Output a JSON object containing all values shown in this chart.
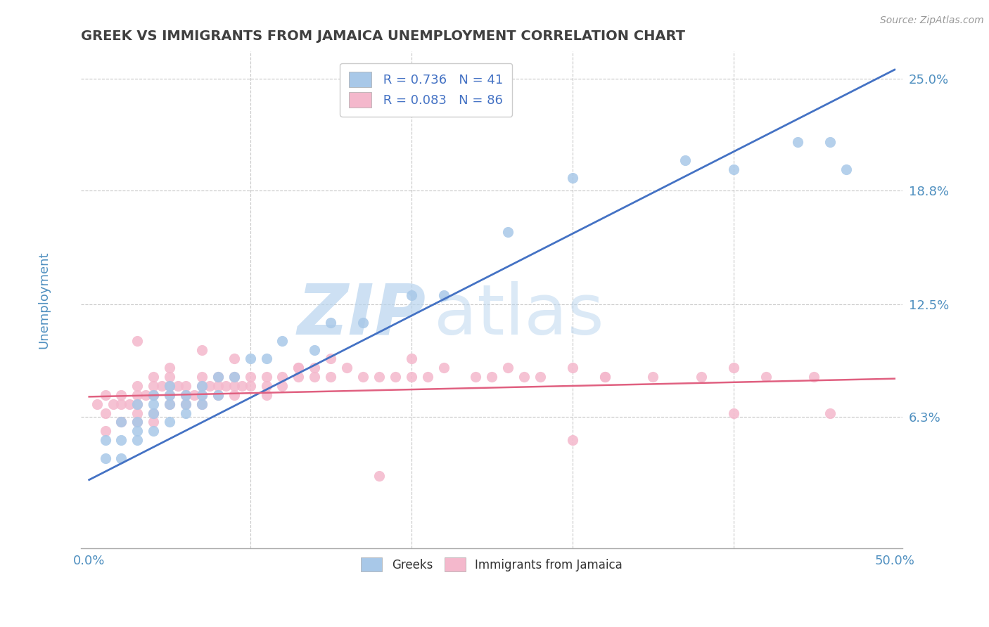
{
  "title": "GREEK VS IMMIGRANTS FROM JAMAICA UNEMPLOYMENT CORRELATION CHART",
  "source_text": "Source: ZipAtlas.com",
  "ylabel": "Unemployment",
  "xlim": [
    -0.005,
    0.505
  ],
  "ylim": [
    -0.01,
    0.265
  ],
  "ytick_positions": [
    0.063,
    0.125,
    0.188,
    0.25
  ],
  "ytick_labels": [
    "6.3%",
    "12.5%",
    "18.8%",
    "25.0%"
  ],
  "blue_color": "#a8c8e8",
  "pink_color": "#f4b8cc",
  "blue_line_color": "#4472c4",
  "pink_line_color": "#e06080",
  "watermark_zip": "ZIP",
  "watermark_atlas": "atlas",
  "watermark_color": "#b8d4ee",
  "legend_r1": "R = 0.736",
  "legend_n1": "N = 41",
  "legend_r2": "R = 0.083",
  "legend_n2": "N = 86",
  "legend_label1": "Greeks",
  "legend_label2": "Immigrants from Jamaica",
  "blue_scatter_x": [
    0.01,
    0.01,
    0.02,
    0.02,
    0.02,
    0.03,
    0.03,
    0.03,
    0.03,
    0.04,
    0.04,
    0.04,
    0.04,
    0.05,
    0.05,
    0.05,
    0.05,
    0.06,
    0.06,
    0.06,
    0.07,
    0.07,
    0.07,
    0.08,
    0.08,
    0.09,
    0.1,
    0.11,
    0.12,
    0.14,
    0.15,
    0.17,
    0.2,
    0.22,
    0.26,
    0.3,
    0.37,
    0.4,
    0.44,
    0.46,
    0.47
  ],
  "blue_scatter_y": [
    0.04,
    0.05,
    0.04,
    0.05,
    0.06,
    0.05,
    0.055,
    0.06,
    0.07,
    0.055,
    0.065,
    0.07,
    0.075,
    0.06,
    0.07,
    0.075,
    0.08,
    0.065,
    0.07,
    0.075,
    0.07,
    0.075,
    0.08,
    0.075,
    0.085,
    0.085,
    0.095,
    0.095,
    0.105,
    0.1,
    0.115,
    0.115,
    0.13,
    0.13,
    0.165,
    0.195,
    0.205,
    0.2,
    0.215,
    0.215,
    0.2
  ],
  "pink_scatter_x": [
    0.005,
    0.01,
    0.01,
    0.01,
    0.015,
    0.02,
    0.02,
    0.02,
    0.025,
    0.03,
    0.03,
    0.03,
    0.03,
    0.03,
    0.035,
    0.04,
    0.04,
    0.04,
    0.04,
    0.04,
    0.045,
    0.05,
    0.05,
    0.05,
    0.05,
    0.055,
    0.06,
    0.06,
    0.06,
    0.065,
    0.07,
    0.07,
    0.07,
    0.07,
    0.075,
    0.08,
    0.08,
    0.08,
    0.085,
    0.09,
    0.09,
    0.09,
    0.095,
    0.1,
    0.1,
    0.11,
    0.11,
    0.12,
    0.12,
    0.13,
    0.13,
    0.14,
    0.14,
    0.15,
    0.16,
    0.17,
    0.18,
    0.19,
    0.2,
    0.21,
    0.22,
    0.24,
    0.26,
    0.27,
    0.28,
    0.3,
    0.32,
    0.35,
    0.38,
    0.4,
    0.42,
    0.45,
    0.03,
    0.05,
    0.07,
    0.09,
    0.11,
    0.13,
    0.15,
    0.2,
    0.25,
    0.32,
    0.4,
    0.46,
    0.18,
    0.3
  ],
  "pink_scatter_y": [
    0.07,
    0.055,
    0.065,
    0.075,
    0.07,
    0.06,
    0.07,
    0.075,
    0.07,
    0.06,
    0.065,
    0.07,
    0.075,
    0.08,
    0.075,
    0.06,
    0.065,
    0.075,
    0.08,
    0.085,
    0.08,
    0.07,
    0.075,
    0.08,
    0.085,
    0.08,
    0.07,
    0.075,
    0.08,
    0.075,
    0.07,
    0.075,
    0.08,
    0.085,
    0.08,
    0.075,
    0.08,
    0.085,
    0.08,
    0.075,
    0.08,
    0.085,
    0.08,
    0.08,
    0.085,
    0.08,
    0.085,
    0.08,
    0.085,
    0.085,
    0.09,
    0.085,
    0.09,
    0.085,
    0.09,
    0.085,
    0.085,
    0.085,
    0.085,
    0.085,
    0.09,
    0.085,
    0.09,
    0.085,
    0.085,
    0.09,
    0.085,
    0.085,
    0.085,
    0.09,
    0.085,
    0.085,
    0.105,
    0.09,
    0.1,
    0.095,
    0.075,
    0.09,
    0.095,
    0.095,
    0.085,
    0.085,
    0.065,
    0.065,
    0.03,
    0.05
  ],
  "blue_line_y_start": 0.028,
  "blue_line_y_end": 0.255,
  "pink_line_y_start": 0.074,
  "pink_line_y_end": 0.084,
  "background_color": "#ffffff",
  "grid_color": "#c8c8c8",
  "title_color": "#404040",
  "tick_label_color": "#5090c0"
}
